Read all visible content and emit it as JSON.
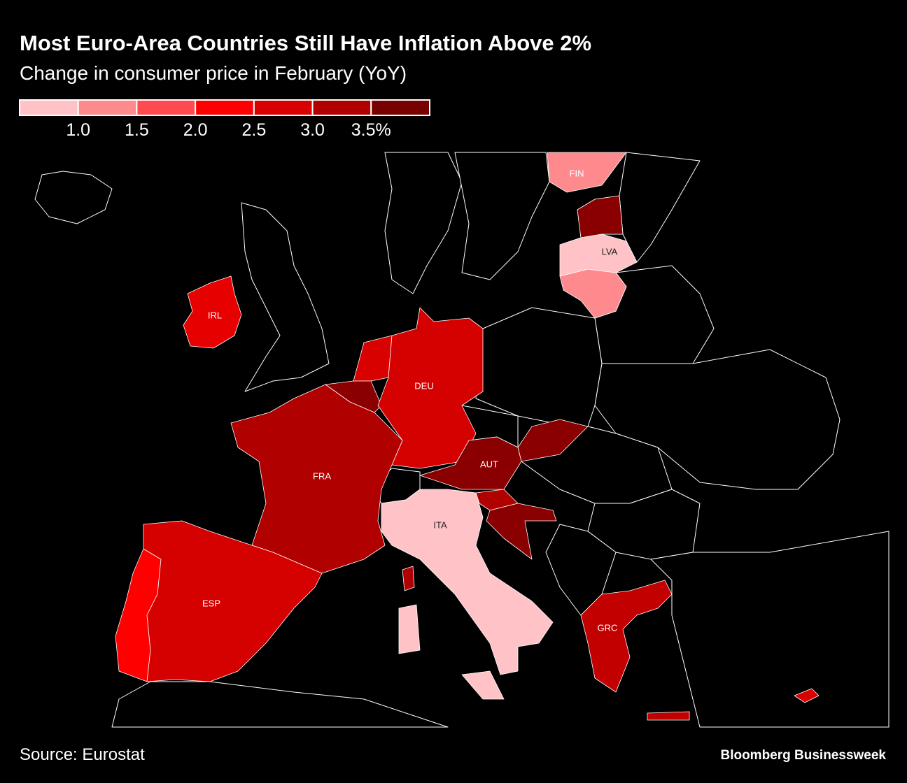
{
  "title": "Most Euro-Area Countries Still Have Inflation Above 2%",
  "subtitle": "Change in consumer price in February (YoY)",
  "legend": {
    "colors": [
      "#ffc2c6",
      "#ff8a8e",
      "#ff4a4f",
      "#ff0000",
      "#d90000",
      "#b00000",
      "#780000"
    ],
    "ticks": [
      {
        "value": 1.0,
        "label": "1.0"
      },
      1.5,
      {
        "value": 2.0,
        "label": "2.0"
      },
      2.5,
      {
        "value": 3.0,
        "label": "3.0"
      },
      {
        "value": 3.5,
        "label": "3.5%"
      }
    ]
  },
  "countries": [
    {
      "label": "FIN",
      "color": "#ff8a8e"
    },
    {
      "label": "LVA",
      "color": "#ffc2c6"
    },
    {
      "label": "IRL",
      "color": "#e60000"
    },
    {
      "label": "DEU",
      "color": "#d50000"
    },
    {
      "label": "FRA",
      "color": "#b00000"
    },
    {
      "label": "AUT",
      "color": "#8a0000"
    },
    {
      "label": "ITA",
      "color": "#ffc2c6"
    },
    {
      "label": "ESP",
      "color": "#d50000"
    },
    {
      "label": "GRC",
      "color": "#c20000"
    }
  ],
  "source": "Source: Eurostat",
  "brand": "Bloomberg Businessweek"
}
